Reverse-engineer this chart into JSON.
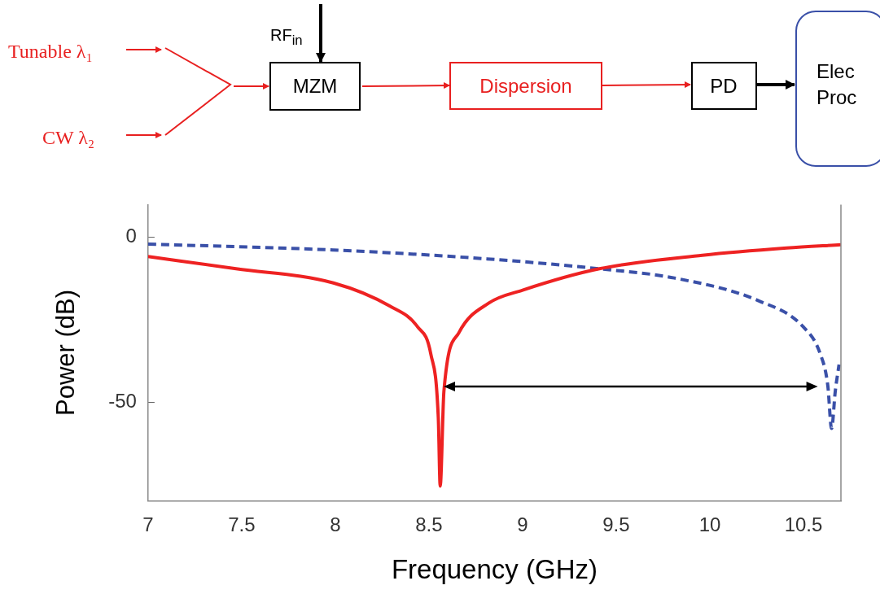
{
  "chart_data": {
    "type": "line",
    "xlabel": "Frequency (GHz)",
    "ylabel": "Power (dB)",
    "xlim": [
      7,
      10.7
    ],
    "xticks": [
      7,
      7.5,
      8,
      8.5,
      9,
      9.5,
      10,
      10.5
    ],
    "ylim": [
      -80,
      10
    ],
    "yticks": [
      0,
      -50
    ],
    "grid": false,
    "legend": false,
    "marker": "none",
    "annotations": [
      "Tunable λ₁",
      "CW λ₂",
      "RF$_{in}$",
      "MZM",
      "Dispersion",
      "PD",
      "Elec Proc"
    ],
    "series": [
      {
        "color": "#ee2222",
        "line_style": "solid",
        "x": [
          7.0,
          7.47,
          7.99,
          8.29,
          8.44,
          8.51,
          8.55,
          8.56,
          8.58,
          8.66,
          8.82,
          9.0,
          9.41,
          9.96,
          10.41,
          10.7
        ],
        "values": [
          -5.8,
          -9.5,
          -13.8,
          -20.8,
          -27.2,
          -35.4,
          -54.9,
          -75.5,
          -46.6,
          -28.9,
          -19.9,
          -16,
          -9.5,
          -5.4,
          -3.2,
          -2.2
        ]
      },
      {
        "color": "#3a50a8",
        "line_style": "dashed",
        "x": [
          7.0,
          7.99,
          8.81,
          9.41,
          9.81,
          10.26,
          10.5,
          10.59,
          10.63,
          10.65,
          10.67,
          10.69
        ],
        "values": [
          -2.0,
          -3.8,
          -6.5,
          -9.5,
          -12.3,
          -19.2,
          -27.2,
          -35.4,
          -45,
          -58,
          -46.6,
          -38.6
        ]
      }
    ]
  }
}
